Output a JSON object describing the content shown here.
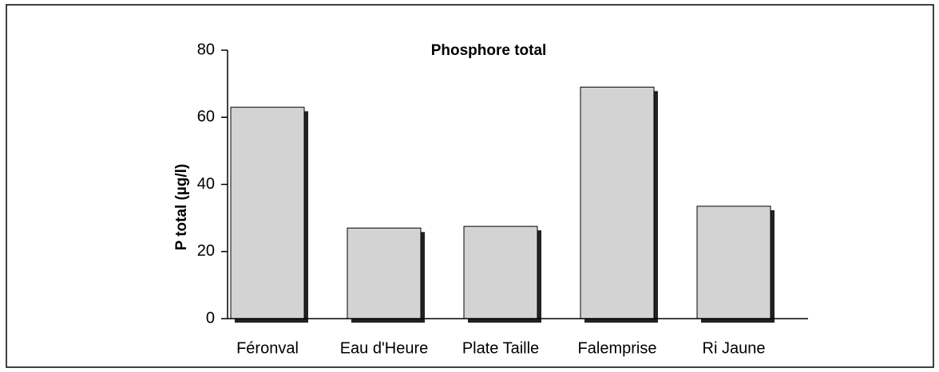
{
  "chart_data": {
    "type": "bar",
    "title": "Phosphore total",
    "y_label": "P total (µg/l)",
    "categories": [
      "Féronval",
      "Eau d'Heure",
      "Plate Taille",
      "Falemprise",
      "Ri Jaune"
    ],
    "values": [
      63,
      27,
      27.5,
      69,
      33.5
    ],
    "color": "#d3d3d3",
    "ylim": [
      0,
      80
    ],
    "yticks": [
      0,
      20,
      40,
      60,
      80
    ],
    "grid": false
  }
}
